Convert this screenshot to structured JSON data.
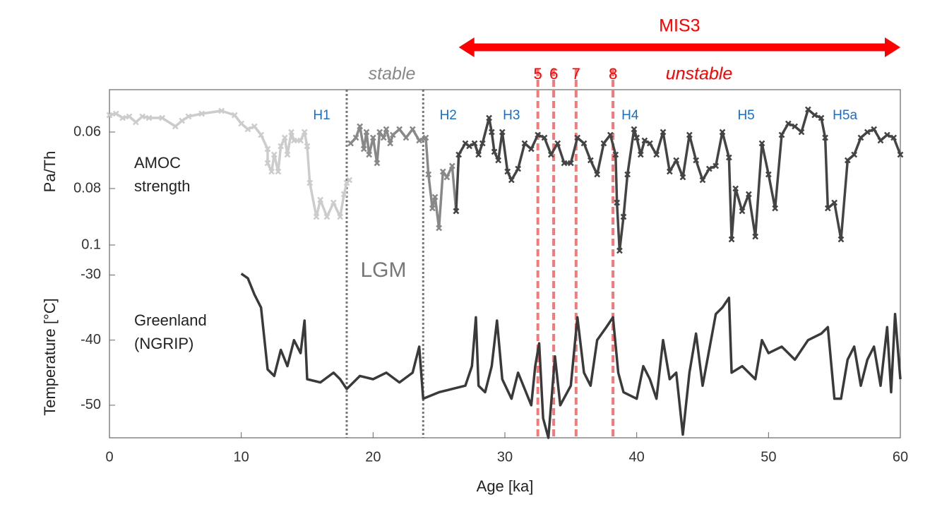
{
  "chart_data": {
    "type": "line",
    "xlabel": "Age [ka]",
    "xlim": [
      0,
      60
    ],
    "xticks": [
      0,
      10,
      20,
      30,
      40,
      50,
      60
    ],
    "mis3": {
      "label": "MIS3",
      "range": [
        26.5,
        60
      ],
      "color": "#ff0000"
    },
    "stable_label": "stable",
    "unstable_label": "unstable",
    "lgm_label": "LGM",
    "lgm_bounds": [
      18.0,
      23.8
    ],
    "events": [
      {
        "label": "5",
        "x": 32.5
      },
      {
        "label": "6",
        "x": 33.7
      },
      {
        "label": "7",
        "x": 35.4
      },
      {
        "label": "8",
        "x": 38.2
      }
    ],
    "heinrich": [
      {
        "label": "H1",
        "x": 16.1
      },
      {
        "label": "H2",
        "x": 25.7
      },
      {
        "label": "H3",
        "x": 30.5
      },
      {
        "label": "H4",
        "x": 39.5
      },
      {
        "label": "H5",
        "x": 48.3
      },
      {
        "label": "H5a",
        "x": 55.8
      }
    ],
    "panels": [
      {
        "ylabel": "Pa/Th",
        "annotation": [
          "AMOC",
          "strength"
        ],
        "ylim": [
          0.045,
          0.103
        ],
        "y_inverted": true,
        "yticks": [
          0.06,
          0.08,
          0.1
        ],
        "marker": "x",
        "series": [
          {
            "color": "#cccccc",
            "x": [
              0,
              0.5,
              1,
              1.5,
              2,
              2.5,
              3,
              4,
              5,
              5.5,
              6,
              7,
              8.5,
              9.5,
              10,
              10.5,
              11,
              11.5,
              12,
              12,
              12.3,
              12.5,
              12.8,
              13,
              13.3,
              13.5,
              13.8,
              14,
              14.5,
              14.8,
              15,
              15.2,
              15.7,
              16,
              16.5,
              17,
              17.5,
              17.8,
              18,
              18.2
            ],
            "values": [
              0.054,
              0.0535,
              0.055,
              0.0545,
              0.0565,
              0.0545,
              0.055,
              0.055,
              0.058,
              0.056,
              0.0545,
              0.0535,
              0.0525,
              0.054,
              0.057,
              0.059,
              0.058,
              0.061,
              0.066,
              0.071,
              0.074,
              0.068,
              0.074,
              0.065,
              0.062,
              0.068,
              0.06,
              0.063,
              0.063,
              0.06,
              0.065,
              0.078,
              0.09,
              0.084,
              0.09,
              0.085,
              0.09,
              0.082,
              0.078,
              0.077
            ]
          },
          {
            "color": "#888888",
            "x": [
              18.3,
              18.7,
              19,
              19.3,
              19.5,
              19.7,
              20,
              20.3,
              20.5,
              20.8,
              21,
              21.3,
              21.5,
              22,
              22.5,
              23,
              23.5,
              24,
              24.2,
              24.5,
              24.7,
              25,
              25.3,
              25.6,
              26,
              26.3
            ],
            "values": [
              0.064,
              0.062,
              0.058,
              0.066,
              0.06,
              0.068,
              0.062,
              0.071,
              0.06,
              0.062,
              0.059,
              0.064,
              0.061,
              0.059,
              0.062,
              0.059,
              0.063,
              0.062,
              0.075,
              0.087,
              0.083,
              0.094,
              0.074,
              0.076,
              0.072,
              0.088
            ]
          },
          {
            "color": "#444444",
            "x": [
              26.3,
              26.5,
              27,
              27.3,
              27.7,
              28,
              28.3,
              28.8,
              29,
              29.2,
              29.5,
              29.8,
              30.2,
              30.5,
              31,
              31.5,
              32,
              32.5,
              33,
              33.5,
              34,
              34.5,
              35,
              35.5,
              36,
              36.5,
              37,
              37.5,
              38,
              38.4,
              38.5,
              38.7,
              39,
              39.3,
              39.8,
              40,
              40.3,
              40.6,
              41,
              41.5,
              42,
              42.5,
              43,
              43.5,
              44,
              44.5,
              45,
              45.5,
              46,
              46.5,
              47,
              47.2,
              47.5,
              48,
              48.5,
              49,
              49.5,
              50,
              50.5,
              51,
              51.5,
              52,
              52.5,
              53,
              53.5,
              54,
              54.3,
              54.5,
              55,
              55.5,
              56,
              56.5,
              57,
              57.5,
              58,
              58.5,
              59,
              59.5,
              60
            ],
            "values": [
              0.088,
              0.068,
              0.064,
              0.065,
              0.064,
              0.068,
              0.064,
              0.055,
              0.06,
              0.067,
              0.07,
              0.06,
              0.074,
              0.077,
              0.073,
              0.064,
              0.066,
              0.061,
              0.062,
              0.068,
              0.064,
              0.071,
              0.071,
              0.062,
              0.064,
              0.07,
              0.075,
              0.064,
              0.061,
              0.068,
              0.085,
              0.102,
              0.09,
              0.075,
              0.059,
              0.062,
              0.068,
              0.063,
              0.064,
              0.068,
              0.06,
              0.074,
              0.07,
              0.076,
              0.061,
              0.07,
              0.077,
              0.073,
              0.072,
              0.06,
              0.069,
              0.098,
              0.08,
              0.088,
              0.082,
              0.097,
              0.064,
              0.075,
              0.087,
              0.061,
              0.057,
              0.058,
              0.06,
              0.052,
              0.054,
              0.055,
              0.062,
              0.087,
              0.085,
              0.098,
              0.07,
              0.068,
              0.062,
              0.06,
              0.059,
              0.063,
              0.061,
              0.062,
              0.068
            ]
          }
        ]
      },
      {
        "ylabel": "Temperature [°C]",
        "annotation": [
          "Greenland",
          "(NGRIP)"
        ],
        "ylim": [
          -55,
          -28
        ],
        "yticks": [
          -30,
          -40,
          -50
        ],
        "series": [
          {
            "color": "#3a3a3a",
            "x": [
              10,
              10.5,
              11,
              11.5,
              12,
              12.5,
              13,
              13.5,
              14,
              14.5,
              14.8,
              15,
              16,
              17,
              17.5,
              18,
              19,
              20,
              21,
              22,
              23,
              23.5,
              23.8,
              25,
              26,
              27,
              27.5,
              27.8,
              28,
              28.5,
              29,
              29.4,
              29.8,
              30.5,
              31,
              32,
              32.3,
              32.6,
              32.9,
              33.3,
              33.8,
              34.2,
              35,
              35.5,
              36,
              36.5,
              37,
              37.7,
              38.2,
              38.6,
              39,
              40,
              40.5,
              41,
              41.5,
              42,
              42.5,
              43,
              43.5,
              44,
              44.5,
              45,
              46,
              46.5,
              47,
              47.2,
              48,
              49,
              49.5,
              50,
              51,
              52,
              53,
              54,
              54.5,
              55,
              55.5,
              56,
              56.5,
              57,
              57.5,
              58,
              58.5,
              59,
              59.3,
              59.6,
              60
            ],
            "values": [
              -29.8,
              -30.5,
              -33,
              -35,
              -44.5,
              -45.5,
              -41.5,
              -44,
              -40,
              -42,
              -37,
              -46,
              -46.5,
              -45,
              -46,
              -47.5,
              -45.5,
              -46,
              -45,
              -46.5,
              -45,
              -41,
              -49,
              -48,
              -47.5,
              -47,
              -44,
              -36.5,
              -47,
              -48,
              -44,
              -37,
              -46,
              -49,
              -45,
              -50,
              -44,
              -40.5,
              -52,
              -55,
              -42.5,
              -50,
              -47,
              -36.5,
              -45,
              -47,
              -40,
              -38,
              -36.5,
              -45,
              -48,
              -49,
              -44,
              -46,
              -49,
              -40,
              -46,
              -45,
              -54.5,
              -45,
              -39,
              -47,
              -36,
              -35,
              -33.5,
              -45,
              -44,
              -46,
              -40,
              -42,
              -41,
              -43,
              -40,
              -39,
              -38,
              -49,
              -49,
              -43,
              -41,
              -47,
              -43,
              -41,
              -47,
              -38,
              -48,
              -36,
              -46
            ]
          }
        ]
      }
    ]
  }
}
